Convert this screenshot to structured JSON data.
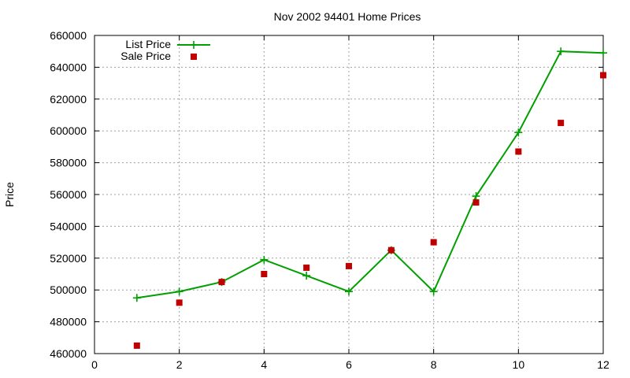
{
  "chart_data": {
    "type": "line",
    "title": "Nov 2002 94401 Home Prices",
    "xlabel": "",
    "ylabel": "Price",
    "xlim": [
      0,
      12
    ],
    "ylim": [
      460000,
      660000
    ],
    "xticks": [
      0,
      2,
      4,
      6,
      8,
      10,
      12
    ],
    "yticks": [
      460000,
      480000,
      500000,
      520000,
      540000,
      560000,
      580000,
      600000,
      620000,
      640000,
      660000
    ],
    "grid": true,
    "legend": "top-left",
    "series": [
      {
        "name": "List Price",
        "style": "line+cross",
        "color": "#00a000",
        "x": [
          1,
          2,
          3,
          4,
          5,
          6,
          7,
          8,
          9,
          10,
          11,
          12
        ],
        "y": [
          495000,
          499000,
          505000,
          519000,
          509000,
          499000,
          525000,
          499000,
          559000,
          599000,
          650000,
          649000
        ]
      },
      {
        "name": "Sale Price",
        "style": "square",
        "color": "#c00000",
        "x": [
          1,
          2,
          3,
          4,
          5,
          6,
          7,
          8,
          9,
          10,
          11,
          12
        ],
        "y": [
          465000,
          492000,
          505000,
          510000,
          514000,
          515000,
          525000,
          530000,
          555000,
          587000,
          605000,
          635000
        ]
      }
    ]
  }
}
